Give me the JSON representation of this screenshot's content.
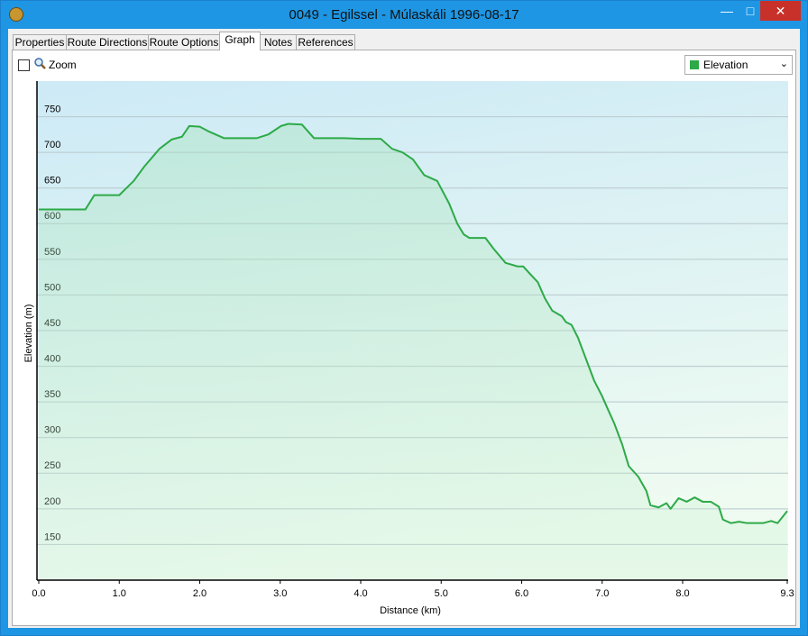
{
  "window": {
    "title": "0049 - Egilssel - Múlaskáli 1996-08-17"
  },
  "tabs": [
    {
      "label": "Properties",
      "selected": false
    },
    {
      "label": "Route Directions",
      "selected": false
    },
    {
      "label": "Route Options",
      "selected": false
    },
    {
      "label": "Graph",
      "selected": true
    },
    {
      "label": "Notes",
      "selected": false
    },
    {
      "label": "References",
      "selected": false
    }
  ],
  "zoom": {
    "label": "Zoom",
    "checked": false
  },
  "chart_data": {
    "type": "line",
    "xlabel": "Distance  (km)",
    "ylabel": "Elevation (m)",
    "x": [
      0,
      0.58,
      0.69,
      1.0,
      1.18,
      1.31,
      1.5,
      1.65,
      1.78,
      1.87,
      2.0,
      2.1,
      2.3,
      2.71,
      2.85,
      3.01,
      3.1,
      3.27,
      3.42,
      3.8,
      4.0,
      4.25,
      4.39,
      4.52,
      4.65,
      4.79,
      4.95,
      5.1,
      5.2,
      5.28,
      5.35,
      5.55,
      5.65,
      5.8,
      5.95,
      6.02,
      6.1,
      6.2,
      6.29,
      6.38,
      6.5,
      6.55,
      6.62,
      6.7,
      6.8,
      6.9,
      7.0,
      7.07,
      7.15,
      7.25,
      7.33,
      7.45,
      7.55,
      7.6,
      7.7,
      7.8,
      7.85,
      7.95,
      8.05,
      8.15,
      8.25,
      8.35,
      8.45,
      8.5,
      8.6,
      8.7,
      8.8,
      9.0,
      9.1,
      9.18,
      9.3
    ],
    "series": [
      {
        "name": "Elevation",
        "color": "#2daa48",
        "values": [
          620,
          620,
          640,
          640,
          660,
          680,
          705,
          718,
          722,
          737,
          736,
          730,
          720,
          720,
          725,
          737,
          740,
          739,
          720,
          720,
          719,
          719,
          705,
          700,
          690,
          668,
          660,
          628,
          600,
          585,
          580,
          580,
          565,
          545,
          540,
          540,
          530,
          518,
          495,
          478,
          470,
          462,
          458,
          440,
          410,
          380,
          358,
          340,
          320,
          290,
          260,
          245,
          225,
          205,
          202,
          208,
          200,
          215,
          210,
          216,
          210,
          210,
          203,
          185,
          180,
          182,
          180,
          180,
          183,
          180,
          197
        ]
      }
    ],
    "xlim": [
      0,
      9.3
    ],
    "ylim": [
      100,
      800
    ],
    "xticks": [
      {
        "value": 0,
        "label": "0.0"
      },
      {
        "value": 1,
        "label": "1.0"
      },
      {
        "value": 2,
        "label": "2.0"
      },
      {
        "value": 3,
        "label": "3.0"
      },
      {
        "value": 4,
        "label": "4.0"
      },
      {
        "value": 5,
        "label": "5.0"
      },
      {
        "value": 6,
        "label": "6.0"
      },
      {
        "value": 7,
        "label": "7.0"
      },
      {
        "value": 8,
        "label": "8.0"
      },
      {
        "value": 9.3,
        "label": "9.3"
      }
    ],
    "yticks": [
      150,
      200,
      250,
      300,
      350,
      400,
      450,
      500,
      550,
      600,
      650,
      700,
      750
    ],
    "grid": true
  }
}
